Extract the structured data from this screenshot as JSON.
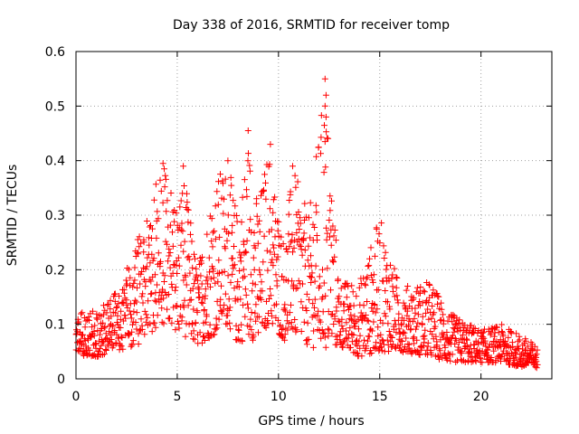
{
  "chart_data": {
    "type": "scatter",
    "title": "Day 338 of 2016, SRMTID for receiver tomp",
    "xlabel": "GPS time / hours",
    "ylabel": "SRMTID / TECUs",
    "xlim": [
      0,
      23.5
    ],
    "ylim": [
      0,
      0.6
    ],
    "xticks": [
      "0",
      "5",
      "10",
      "15",
      "20"
    ],
    "yticks": [
      "0",
      "0.1",
      "0.2",
      "0.3",
      "0.4",
      "0.5",
      "0.6"
    ],
    "grid": true,
    "marker": "+",
    "series_color": "#ff0000",
    "trend_description": "approximate envelope of the plotted point cloud (hours, TECU)",
    "envelope": [
      {
        "x": 0.0,
        "low": 0.04,
        "high": 0.12
      },
      {
        "x": 1.0,
        "low": 0.04,
        "high": 0.13
      },
      {
        "x": 2.0,
        "low": 0.05,
        "high": 0.16
      },
      {
        "x": 3.0,
        "low": 0.06,
        "high": 0.25
      },
      {
        "x": 3.8,
        "low": 0.08,
        "high": 0.35
      },
      {
        "x": 4.3,
        "low": 0.1,
        "high": 0.39
      },
      {
        "x": 5.0,
        "low": 0.08,
        "high": 0.33
      },
      {
        "x": 5.3,
        "low": 0.08,
        "high": 0.39
      },
      {
        "x": 6.0,
        "low": 0.06,
        "high": 0.2
      },
      {
        "x": 6.8,
        "low": 0.08,
        "high": 0.37
      },
      {
        "x": 7.5,
        "low": 0.1,
        "high": 0.4
      },
      {
        "x": 8.0,
        "low": 0.06,
        "high": 0.3
      },
      {
        "x": 8.5,
        "low": 0.08,
        "high": 0.45
      },
      {
        "x": 9.0,
        "low": 0.06,
        "high": 0.32
      },
      {
        "x": 9.5,
        "low": 0.1,
        "high": 0.43
      },
      {
        "x": 10.3,
        "low": 0.07,
        "high": 0.25
      },
      {
        "x": 10.7,
        "low": 0.08,
        "high": 0.39
      },
      {
        "x": 11.5,
        "low": 0.06,
        "high": 0.3
      },
      {
        "x": 12.3,
        "low": 0.05,
        "high": 0.55
      },
      {
        "x": 13.0,
        "low": 0.06,
        "high": 0.18
      },
      {
        "x": 14.0,
        "low": 0.04,
        "high": 0.18
      },
      {
        "x": 15.0,
        "low": 0.05,
        "high": 0.3
      },
      {
        "x": 16.0,
        "low": 0.05,
        "high": 0.17
      },
      {
        "x": 17.5,
        "low": 0.04,
        "high": 0.18
      },
      {
        "x": 18.5,
        "low": 0.03,
        "high": 0.12
      },
      {
        "x": 20.0,
        "low": 0.03,
        "high": 0.09
      },
      {
        "x": 21.0,
        "low": 0.03,
        "high": 0.1
      },
      {
        "x": 22.0,
        "low": 0.02,
        "high": 0.08
      },
      {
        "x": 22.8,
        "low": 0.02,
        "high": 0.06
      }
    ],
    "spikes": [
      {
        "x": 12.3,
        "y": 0.55
      },
      {
        "x": 12.35,
        "y": 0.52
      },
      {
        "x": 12.3,
        "y": 0.5
      },
      {
        "x": 12.35,
        "y": 0.48
      },
      {
        "x": 12.3,
        "y": 0.435
      },
      {
        "x": 8.5,
        "y": 0.455
      },
      {
        "x": 9.6,
        "y": 0.43
      },
      {
        "x": 7.5,
        "y": 0.4
      },
      {
        "x": 4.3,
        "y": 0.395
      },
      {
        "x": 5.3,
        "y": 0.39
      },
      {
        "x": 10.7,
        "y": 0.39
      }
    ],
    "point_count": 1600
  }
}
